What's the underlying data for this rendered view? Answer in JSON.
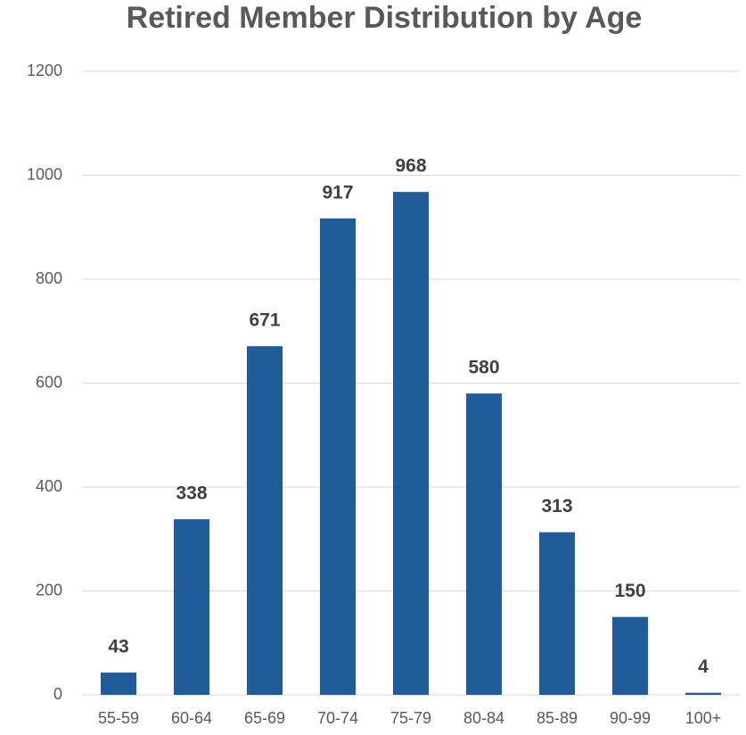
{
  "chart_data": {
    "type": "bar",
    "title": "Retired Member Distribution by Age",
    "categories": [
      "55-59",
      "60-64",
      "65-69",
      "70-74",
      "75-79",
      "80-84",
      "85-89",
      "90-99",
      "100+"
    ],
    "values": [
      43,
      338,
      671,
      917,
      968,
      580,
      313,
      150,
      4
    ],
    "color": "#1f5c99",
    "ylim": [
      0,
      1200
    ],
    "yticks": [
      0,
      200,
      400,
      600,
      800,
      1000,
      1200
    ],
    "grid": true
  }
}
